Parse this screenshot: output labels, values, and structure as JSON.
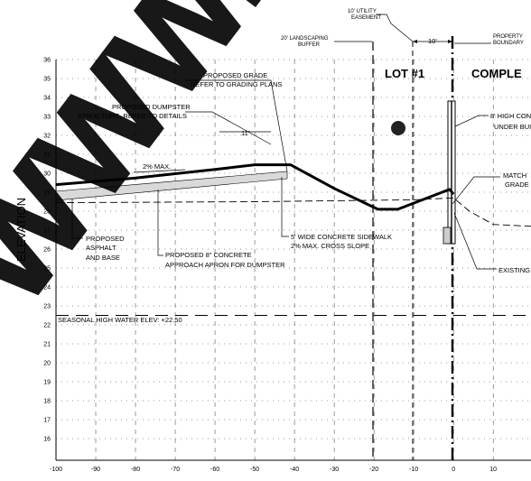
{
  "axis": {
    "ylabel": "ELEVATION",
    "y_ticks": [
      "36",
      "35",
      "34",
      "33",
      "32",
      "31",
      "30",
      "29",
      "28",
      "27",
      "26",
      "25",
      "24",
      "23",
      "22",
      "21",
      "20",
      "19",
      "18",
      "17",
      "16"
    ],
    "x_ticks": [
      "-100",
      "-90",
      "-80",
      "-70",
      "-60",
      "-50",
      "-40",
      "-30",
      "-20",
      "-10",
      "0",
      "10"
    ]
  },
  "lot_label": "LOT #1",
  "comp_label": "COMPLE",
  "notes": {
    "utility_easement": [
      "10' UTILITY",
      "EASEMENT"
    ],
    "landscape_buffer": [
      "20' LANDSCAPING",
      "BUFFER"
    ],
    "dim_10": "10'",
    "property_boundary": [
      "PROPERTY",
      "BOUNDARY"
    ],
    "proposed_grade": [
      "PROPOSED GRADE",
      "REFER TO GRADING PLANS"
    ],
    "dumpster": [
      "PROPOSED DUMPSTER",
      "STRUCTURE, REFER TO DETAILS"
    ],
    "dim_11": "11'",
    "slope": "2% MAX.",
    "wall": [
      "8' HIGH CON",
      "UNDER BUI"
    ],
    "match_grade": [
      "MATCH",
      "GRADE"
    ],
    "asphalt": [
      "PROPOSED",
      "ASPHALT",
      "AND BASE"
    ],
    "apron": [
      "PROPOSED 8\" CONCRETE",
      "APPROACH APRON FOR DUMPSTER"
    ],
    "sidewalk": [
      "5' WIDE CONCRETE SIDEWALK",
      "2% MAX. CROSS SLOPE"
    ],
    "existing": "EXISTING",
    "seasonal": "SEASONAL HIGH WATER ELEV: +22.50"
  },
  "watermark": "WWW.L",
  "colors": {
    "line": "#000000",
    "grid": "#000000",
    "watermark": "#000000",
    "hatch": "#c8c8c8"
  },
  "profiles": {
    "proposed_grade": [
      [
        -100,
        29.4
      ],
      [
        -80,
        29.75
      ],
      [
        -60,
        30.2
      ],
      [
        -50,
        30.45
      ],
      [
        -41,
        30.45
      ],
      [
        -30,
        29.2
      ],
      [
        -19,
        28.1
      ],
      [
        -14,
        28.1
      ],
      [
        -1,
        29.15
      ],
      [
        0,
        28.9
      ]
    ],
    "existing_grade": [
      [
        -100,
        28.45
      ],
      [
        -50,
        28.5
      ],
      [
        -10,
        28.6
      ],
      [
        0,
        28.7
      ],
      [
        4,
        28.0
      ],
      [
        10,
        27.3
      ],
      [
        20,
        27.2
      ]
    ],
    "seasonal_high_water": 22.5
  }
}
